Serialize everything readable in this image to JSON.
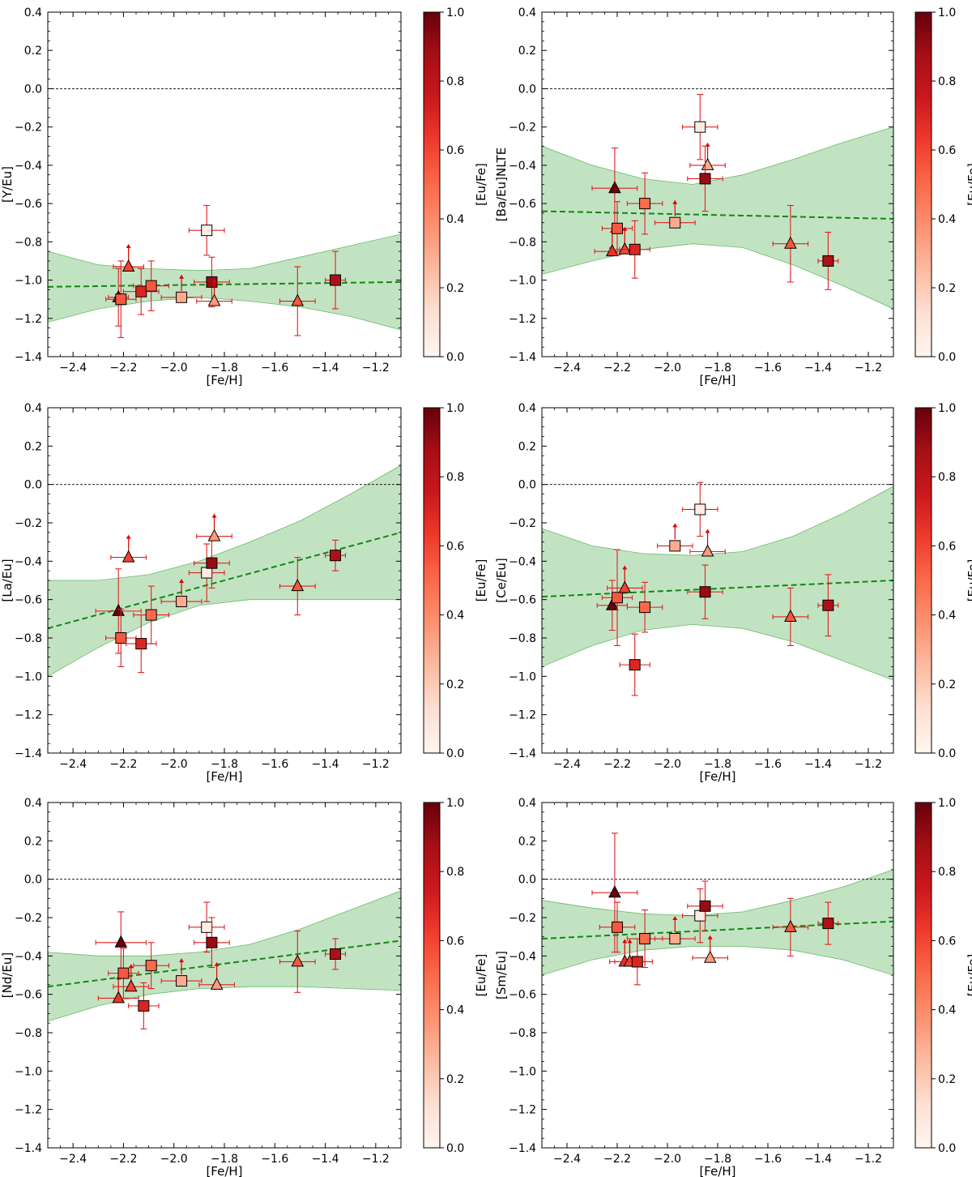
{
  "figure": {
    "xlabel": "[Fe/H]",
    "colorbar_label": "[Eu/Fe]",
    "colorbar_ticks": [
      "0.0",
      "0.2",
      "0.4",
      "0.6",
      "0.8",
      "1.0"
    ],
    "x_ticks": [
      -2.4,
      -2.2,
      -2.0,
      -1.8,
      -1.6,
      -1.4,
      -1.2
    ],
    "x_tick_labels": [
      "−2.4",
      "−2.2",
      "−2.0",
      "−1.8",
      "−1.6",
      "−1.4",
      "−1.2"
    ],
    "y_ticks": [
      0.4,
      0.2,
      0.0,
      -0.2,
      -0.4,
      -0.6,
      -0.8,
      -1.0,
      -1.2,
      -1.4
    ],
    "y_tick_labels": [
      "0.4",
      "0.2",
      "0.0",
      "−0.2",
      "−0.4",
      "−0.6",
      "−0.8",
      "−1.0",
      "−1.2",
      "−1.4"
    ],
    "colors": {
      "fit_line": "#118811",
      "band_fill": "#8fcc8f",
      "errorbar": "#e02020",
      "arrow": "#e00000",
      "cmap_low": "#fff5f0",
      "cmap_high": "#67000d"
    }
  },
  "chart_data": [
    {
      "type": "scatter",
      "ylabel": "[Y/Eu]",
      "xlim": [
        -2.5,
        -1.1
      ],
      "ylim": [
        -1.4,
        0.4
      ],
      "fit": {
        "x": [
          -2.5,
          -1.1
        ],
        "y": [
          -1.035,
          -1.01
        ]
      },
      "band": {
        "x": [
          -2.5,
          -2.3,
          -2.1,
          -1.9,
          -1.7,
          -1.5,
          -1.3,
          -1.1
        ],
        "lower": [
          -1.22,
          -1.15,
          -1.11,
          -1.09,
          -1.11,
          -1.14,
          -1.19,
          -1.26
        ],
        "upper": [
          -0.85,
          -0.92,
          -0.94,
          -0.95,
          -0.94,
          -0.88,
          -0.82,
          -0.76
        ]
      },
      "points": [
        {
          "x": -2.22,
          "y": -1.09,
          "xerr": 0.04,
          "yerr": 0.15,
          "c": 1.0,
          "marker": "triangle",
          "lower_limit": false
        },
        {
          "x": -2.21,
          "y": -1.1,
          "xerr": 0.06,
          "yerr": 0.2,
          "c": 0.55,
          "marker": "square",
          "lower_limit": false
        },
        {
          "x": -2.18,
          "y": -0.93,
          "xerr": 0.06,
          "yerr": 0.0,
          "c": 0.6,
          "marker": "triangle",
          "lower_limit": true
        },
        {
          "x": -2.13,
          "y": -1.06,
          "xerr": 0.07,
          "yerr": 0.12,
          "c": 0.7,
          "marker": "square",
          "lower_limit": false
        },
        {
          "x": -2.09,
          "y": -1.03,
          "xerr": 0.07,
          "yerr": 0.13,
          "c": 0.55,
          "marker": "square",
          "lower_limit": false
        },
        {
          "x": -1.97,
          "y": -1.09,
          "xerr": 0.08,
          "yerr": 0.0,
          "c": 0.3,
          "marker": "square",
          "lower_limit": true
        },
        {
          "x": -1.87,
          "y": -0.74,
          "xerr": 0.07,
          "yerr": 0.13,
          "c": 0.05,
          "marker": "square",
          "lower_limit": false
        },
        {
          "x": -1.85,
          "y": -1.01,
          "xerr": 0.07,
          "yerr": 0.13,
          "c": 0.9,
          "marker": "square",
          "lower_limit": false
        },
        {
          "x": -1.84,
          "y": -1.11,
          "xerr": 0.07,
          "yerr": 0.0,
          "c": 0.35,
          "marker": "triangle",
          "lower_limit": true
        },
        {
          "x": -1.51,
          "y": -1.11,
          "xerr": 0.07,
          "yerr": 0.18,
          "c": 0.55,
          "marker": "triangle",
          "lower_limit": false
        },
        {
          "x": -1.36,
          "y": -1.0,
          "xerr": 0.04,
          "yerr": 0.15,
          "c": 0.85,
          "marker": "square",
          "lower_limit": false
        }
      ]
    },
    {
      "type": "scatter",
      "ylabel": "[Ba/Eu]NLTE",
      "xlim": [
        -2.5,
        -1.1
      ],
      "ylim": [
        -1.4,
        0.4
      ],
      "fit": {
        "x": [
          -2.5,
          -1.1
        ],
        "y": [
          -0.64,
          -0.68
        ]
      },
      "band": {
        "x": [
          -2.5,
          -2.3,
          -2.1,
          -1.9,
          -1.7,
          -1.5,
          -1.3,
          -1.1
        ],
        "lower": [
          -0.97,
          -0.9,
          -0.84,
          -0.81,
          -0.83,
          -0.92,
          -1.03,
          -1.15
        ],
        "upper": [
          -0.3,
          -0.4,
          -0.47,
          -0.5,
          -0.45,
          -0.37,
          -0.28,
          -0.2
        ]
      },
      "points": [
        {
          "x": -2.21,
          "y": -0.52,
          "xerr": 0.09,
          "yerr": 0.21,
          "c": 1.0,
          "marker": "triangle",
          "lower_limit": false
        },
        {
          "x": -2.22,
          "y": -0.85,
          "xerr": 0.07,
          "yerr": 0.0,
          "c": 0.65,
          "marker": "triangle",
          "lower_limit": true
        },
        {
          "x": -2.2,
          "y": -0.73,
          "xerr": 0.06,
          "yerr": 0.14,
          "c": 0.55,
          "marker": "square",
          "lower_limit": false
        },
        {
          "x": -2.17,
          "y": -0.84,
          "xerr": 0.06,
          "yerr": 0.0,
          "c": 0.6,
          "marker": "triangle",
          "lower_limit": true
        },
        {
          "x": -2.13,
          "y": -0.84,
          "xerr": 0.06,
          "yerr": 0.15,
          "c": 0.7,
          "marker": "square",
          "lower_limit": false
        },
        {
          "x": -2.09,
          "y": -0.6,
          "xerr": 0.07,
          "yerr": 0.16,
          "c": 0.5,
          "marker": "square",
          "lower_limit": false
        },
        {
          "x": -1.97,
          "y": -0.7,
          "xerr": 0.08,
          "yerr": 0.0,
          "c": 0.3,
          "marker": "square",
          "lower_limit": true
        },
        {
          "x": -1.87,
          "y": -0.2,
          "xerr": 0.07,
          "yerr": 0.17,
          "c": 0.05,
          "marker": "square",
          "lower_limit": false
        },
        {
          "x": -1.84,
          "y": -0.4,
          "xerr": 0.07,
          "yerr": 0.0,
          "c": 0.3,
          "marker": "triangle",
          "lower_limit": true
        },
        {
          "x": -1.85,
          "y": -0.47,
          "xerr": 0.07,
          "yerr": 0.17,
          "c": 0.9,
          "marker": "square",
          "lower_limit": false
        },
        {
          "x": -1.51,
          "y": -0.81,
          "xerr": 0.07,
          "yerr": 0.2,
          "c": 0.55,
          "marker": "triangle",
          "lower_limit": false
        },
        {
          "x": -1.36,
          "y": -0.9,
          "xerr": 0.04,
          "yerr": 0.15,
          "c": 0.85,
          "marker": "square",
          "lower_limit": false
        }
      ]
    },
    {
      "type": "scatter",
      "ylabel": "[La/Eu]",
      "xlim": [
        -2.5,
        -1.1
      ],
      "ylim": [
        -1.4,
        0.4
      ],
      "fit": {
        "x": [
          -2.5,
          -1.1
        ],
        "y": [
          -0.75,
          -0.25
        ]
      },
      "band": {
        "x": [
          -2.5,
          -2.3,
          -2.1,
          -1.9,
          -1.7,
          -1.5,
          -1.3,
          -1.1
        ],
        "lower": [
          -1.0,
          -0.85,
          -0.72,
          -0.63,
          -0.6,
          -0.6,
          -0.6,
          -0.6
        ],
        "upper": [
          -0.5,
          -0.5,
          -0.47,
          -0.4,
          -0.3,
          -0.19,
          -0.05,
          0.1
        ]
      },
      "points": [
        {
          "x": -2.22,
          "y": -0.66,
          "xerr": 0.09,
          "yerr": 0.22,
          "c": 1.0,
          "marker": "triangle",
          "lower_limit": false
        },
        {
          "x": -2.21,
          "y": -0.8,
          "xerr": 0.06,
          "yerr": 0.15,
          "c": 0.55,
          "marker": "square",
          "lower_limit": false
        },
        {
          "x": -2.18,
          "y": -0.38,
          "xerr": 0.07,
          "yerr": 0.0,
          "c": 0.6,
          "marker": "triangle",
          "lower_limit": true
        },
        {
          "x": -2.13,
          "y": -0.83,
          "xerr": 0.06,
          "yerr": 0.15,
          "c": 0.7,
          "marker": "square",
          "lower_limit": false
        },
        {
          "x": -2.09,
          "y": -0.68,
          "xerr": 0.07,
          "yerr": 0.15,
          "c": 0.5,
          "marker": "square",
          "lower_limit": false
        },
        {
          "x": -1.97,
          "y": -0.61,
          "xerr": 0.08,
          "yerr": 0.0,
          "c": 0.3,
          "marker": "square",
          "lower_limit": true
        },
        {
          "x": -1.87,
          "y": -0.46,
          "xerr": 0.07,
          "yerr": 0.15,
          "c": 0.05,
          "marker": "square",
          "lower_limit": false
        },
        {
          "x": -1.85,
          "y": -0.41,
          "xerr": 0.07,
          "yerr": 0.13,
          "c": 0.9,
          "marker": "square",
          "lower_limit": false
        },
        {
          "x": -1.84,
          "y": -0.27,
          "xerr": 0.07,
          "yerr": 0.0,
          "c": 0.35,
          "marker": "triangle",
          "lower_limit": true
        },
        {
          "x": -1.51,
          "y": -0.53,
          "xerr": 0.07,
          "yerr": 0.15,
          "c": 0.55,
          "marker": "triangle",
          "lower_limit": false
        },
        {
          "x": -1.36,
          "y": -0.37,
          "xerr": 0.04,
          "yerr": 0.08,
          "c": 0.85,
          "marker": "square",
          "lower_limit": false
        }
      ]
    },
    {
      "type": "scatter",
      "ylabel": "[Ce/Eu]",
      "xlim": [
        -2.5,
        -1.1
      ],
      "ylim": [
        -1.4,
        0.4
      ],
      "fit": {
        "x": [
          -2.5,
          -1.1
        ],
        "y": [
          -0.585,
          -0.5
        ]
      },
      "band": {
        "x": [
          -2.5,
          -2.3,
          -2.1,
          -1.9,
          -1.7,
          -1.5,
          -1.3,
          -1.1
        ],
        "lower": [
          -0.95,
          -0.84,
          -0.76,
          -0.73,
          -0.75,
          -0.82,
          -0.92,
          -1.02
        ],
        "upper": [
          -0.23,
          -0.32,
          -0.36,
          -0.37,
          -0.35,
          -0.27,
          -0.15,
          -0.01
        ]
      },
      "points": [
        {
          "x": -2.22,
          "y": -0.63,
          "xerr": 0.06,
          "yerr": 0.13,
          "c": 1.0,
          "marker": "triangle",
          "lower_limit": false
        },
        {
          "x": -2.2,
          "y": -0.59,
          "xerr": 0.06,
          "yerr": 0.25,
          "c": 0.55,
          "marker": "square",
          "lower_limit": false
        },
        {
          "x": -2.17,
          "y": -0.54,
          "xerr": 0.07,
          "yerr": 0.0,
          "c": 0.6,
          "marker": "triangle",
          "lower_limit": true
        },
        {
          "x": -2.13,
          "y": -0.94,
          "xerr": 0.06,
          "yerr": 0.16,
          "c": 0.7,
          "marker": "square",
          "lower_limit": false
        },
        {
          "x": -2.09,
          "y": -0.64,
          "xerr": 0.07,
          "yerr": 0.13,
          "c": 0.5,
          "marker": "square",
          "lower_limit": false
        },
        {
          "x": -1.97,
          "y": -0.32,
          "xerr": 0.07,
          "yerr": 0.0,
          "c": 0.3,
          "marker": "square",
          "lower_limit": true
        },
        {
          "x": -1.87,
          "y": -0.13,
          "xerr": 0.07,
          "yerr": 0.14,
          "c": 0.05,
          "marker": "square",
          "lower_limit": false
        },
        {
          "x": -1.84,
          "y": -0.35,
          "xerr": 0.07,
          "yerr": 0.0,
          "c": 0.35,
          "marker": "triangle",
          "lower_limit": true
        },
        {
          "x": -1.85,
          "y": -0.56,
          "xerr": 0.07,
          "yerr": 0.14,
          "c": 0.9,
          "marker": "square",
          "lower_limit": false
        },
        {
          "x": -1.51,
          "y": -0.69,
          "xerr": 0.07,
          "yerr": 0.15,
          "c": 0.55,
          "marker": "triangle",
          "lower_limit": false
        },
        {
          "x": -1.36,
          "y": -0.63,
          "xerr": 0.04,
          "yerr": 0.16,
          "c": 0.85,
          "marker": "square",
          "lower_limit": false
        }
      ]
    },
    {
      "type": "scatter",
      "ylabel": "[Nd/Eu]",
      "xlim": [
        -2.5,
        -1.1
      ],
      "ylim": [
        -1.4,
        0.4
      ],
      "fit": {
        "x": [
          -2.5,
          -1.1
        ],
        "y": [
          -0.56,
          -0.32
        ]
      },
      "band": {
        "x": [
          -2.5,
          -2.3,
          -2.1,
          -1.9,
          -1.7,
          -1.5,
          -1.3,
          -1.1
        ],
        "lower": [
          -0.74,
          -0.66,
          -0.6,
          -0.57,
          -0.56,
          -0.56,
          -0.57,
          -0.58
        ],
        "upper": [
          -0.38,
          -0.4,
          -0.4,
          -0.38,
          -0.34,
          -0.26,
          -0.16,
          -0.06
        ]
      },
      "points": [
        {
          "x": -2.21,
          "y": -0.33,
          "xerr": 0.1,
          "yerr": 0.16,
          "c": 1.0,
          "marker": "triangle",
          "lower_limit": false
        },
        {
          "x": -2.22,
          "y": -0.62,
          "xerr": 0.08,
          "yerr": 0.0,
          "c": 0.65,
          "marker": "triangle",
          "lower_limit": true
        },
        {
          "x": -2.2,
          "y": -0.49,
          "xerr": 0.06,
          "yerr": 0.13,
          "c": 0.55,
          "marker": "square",
          "lower_limit": false
        },
        {
          "x": -2.17,
          "y": -0.56,
          "xerr": 0.07,
          "yerr": 0.0,
          "c": 0.6,
          "marker": "triangle",
          "lower_limit": true
        },
        {
          "x": -2.12,
          "y": -0.66,
          "xerr": 0.06,
          "yerr": 0.12,
          "c": 0.7,
          "marker": "square",
          "lower_limit": false
        },
        {
          "x": -2.09,
          "y": -0.45,
          "xerr": 0.07,
          "yerr": 0.12,
          "c": 0.5,
          "marker": "square",
          "lower_limit": false
        },
        {
          "x": -1.97,
          "y": -0.53,
          "xerr": 0.08,
          "yerr": 0.0,
          "c": 0.3,
          "marker": "square",
          "lower_limit": true
        },
        {
          "x": -1.87,
          "y": -0.25,
          "xerr": 0.07,
          "yerr": 0.13,
          "c": 0.05,
          "marker": "square",
          "lower_limit": false
        },
        {
          "x": -1.85,
          "y": -0.33,
          "xerr": 0.07,
          "yerr": 0.13,
          "c": 0.9,
          "marker": "square",
          "lower_limit": false
        },
        {
          "x": -1.83,
          "y": -0.55,
          "xerr": 0.07,
          "yerr": 0.0,
          "c": 0.35,
          "marker": "triangle",
          "lower_limit": true
        },
        {
          "x": -1.51,
          "y": -0.43,
          "xerr": 0.07,
          "yerr": 0.16,
          "c": 0.55,
          "marker": "triangle",
          "lower_limit": false
        },
        {
          "x": -1.36,
          "y": -0.39,
          "xerr": 0.04,
          "yerr": 0.08,
          "c": 0.85,
          "marker": "square",
          "lower_limit": false
        }
      ]
    },
    {
      "type": "scatter",
      "ylabel": "[Sm/Eu]",
      "xlim": [
        -2.5,
        -1.1
      ],
      "ylim": [
        -1.4,
        0.4
      ],
      "fit": {
        "x": [
          -2.5,
          -1.1
        ],
        "y": [
          -0.31,
          -0.22
        ]
      },
      "band": {
        "x": [
          -2.5,
          -2.3,
          -2.1,
          -1.9,
          -1.7,
          -1.5,
          -1.3,
          -1.1
        ],
        "lower": [
          -0.5,
          -0.42,
          -0.37,
          -0.35,
          -0.35,
          -0.37,
          -0.42,
          -0.5
        ],
        "upper": [
          -0.11,
          -0.15,
          -0.18,
          -0.19,
          -0.17,
          -0.11,
          -0.04,
          0.05
        ]
      },
      "points": [
        {
          "x": -2.21,
          "y": -0.07,
          "xerr": 0.09,
          "yerr": 0.31,
          "c": 1.0,
          "marker": "triangle",
          "lower_limit": false
        },
        {
          "x": -2.2,
          "y": -0.25,
          "xerr": 0.07,
          "yerr": 0.13,
          "c": 0.55,
          "marker": "square",
          "lower_limit": false
        },
        {
          "x": -2.17,
          "y": -0.43,
          "xerr": 0.06,
          "yerr": 0.0,
          "c": 0.65,
          "marker": "triangle",
          "lower_limit": true
        },
        {
          "x": -2.15,
          "y": -0.43,
          "xerr": 0.06,
          "yerr": 0.0,
          "c": 0.6,
          "marker": "triangle",
          "lower_limit": true
        },
        {
          "x": -2.12,
          "y": -0.43,
          "xerr": 0.06,
          "yerr": 0.12,
          "c": 0.7,
          "marker": "square",
          "lower_limit": false
        },
        {
          "x": -2.09,
          "y": -0.31,
          "xerr": 0.07,
          "yerr": 0.15,
          "c": 0.5,
          "marker": "square",
          "lower_limit": false
        },
        {
          "x": -1.97,
          "y": -0.31,
          "xerr": 0.08,
          "yerr": 0.0,
          "c": 0.3,
          "marker": "square",
          "lower_limit": true
        },
        {
          "x": -1.87,
          "y": -0.19,
          "xerr": 0.07,
          "yerr": 0.14,
          "c": 0.05,
          "marker": "square",
          "lower_limit": false
        },
        {
          "x": -1.85,
          "y": -0.14,
          "xerr": 0.07,
          "yerr": 0.13,
          "c": 0.9,
          "marker": "square",
          "lower_limit": false
        },
        {
          "x": -1.83,
          "y": -0.41,
          "xerr": 0.07,
          "yerr": 0.0,
          "c": 0.35,
          "marker": "triangle",
          "lower_limit": true
        },
        {
          "x": -1.51,
          "y": -0.25,
          "xerr": 0.07,
          "yerr": 0.15,
          "c": 0.55,
          "marker": "triangle",
          "lower_limit": false
        },
        {
          "x": -1.36,
          "y": -0.23,
          "xerr": 0.04,
          "yerr": 0.11,
          "c": 0.85,
          "marker": "square",
          "lower_limit": false
        }
      ]
    }
  ]
}
